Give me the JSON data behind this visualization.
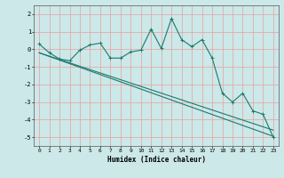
{
  "xlabel": "Humidex (Indice chaleur)",
  "bg_color": "#cce8e8",
  "line_color": "#1a7a6e",
  "grid_color": "#e8a0a0",
  "xlim": [
    -0.5,
    23.5
  ],
  "ylim": [
    -5.5,
    2.5
  ],
  "yticks": [
    -5,
    -4,
    -3,
    -2,
    -1,
    0,
    1,
    2
  ],
  "xticks": [
    0,
    1,
    2,
    3,
    4,
    5,
    6,
    7,
    8,
    9,
    10,
    11,
    12,
    13,
    14,
    15,
    16,
    17,
    18,
    19,
    20,
    21,
    22,
    23
  ],
  "series1_x": [
    0,
    1,
    2,
    3,
    4,
    5,
    6,
    7,
    8,
    9,
    10,
    11,
    12,
    13,
    14,
    15,
    16,
    17,
    18,
    19,
    20,
    21,
    22,
    23
  ],
  "series1_y": [
    0.3,
    -0.2,
    -0.55,
    -0.65,
    -0.05,
    0.25,
    0.35,
    -0.5,
    -0.5,
    -0.15,
    -0.05,
    1.15,
    0.05,
    1.75,
    0.55,
    0.15,
    0.55,
    -0.5,
    -2.5,
    -3.0,
    -2.5,
    -3.5,
    -3.7,
    -5.0
  ],
  "series2_x": [
    0,
    23
  ],
  "series2_y": [
    -0.2,
    -4.95
  ],
  "series3_x": [
    0,
    23
  ],
  "series3_y": [
    -0.2,
    -4.6
  ]
}
